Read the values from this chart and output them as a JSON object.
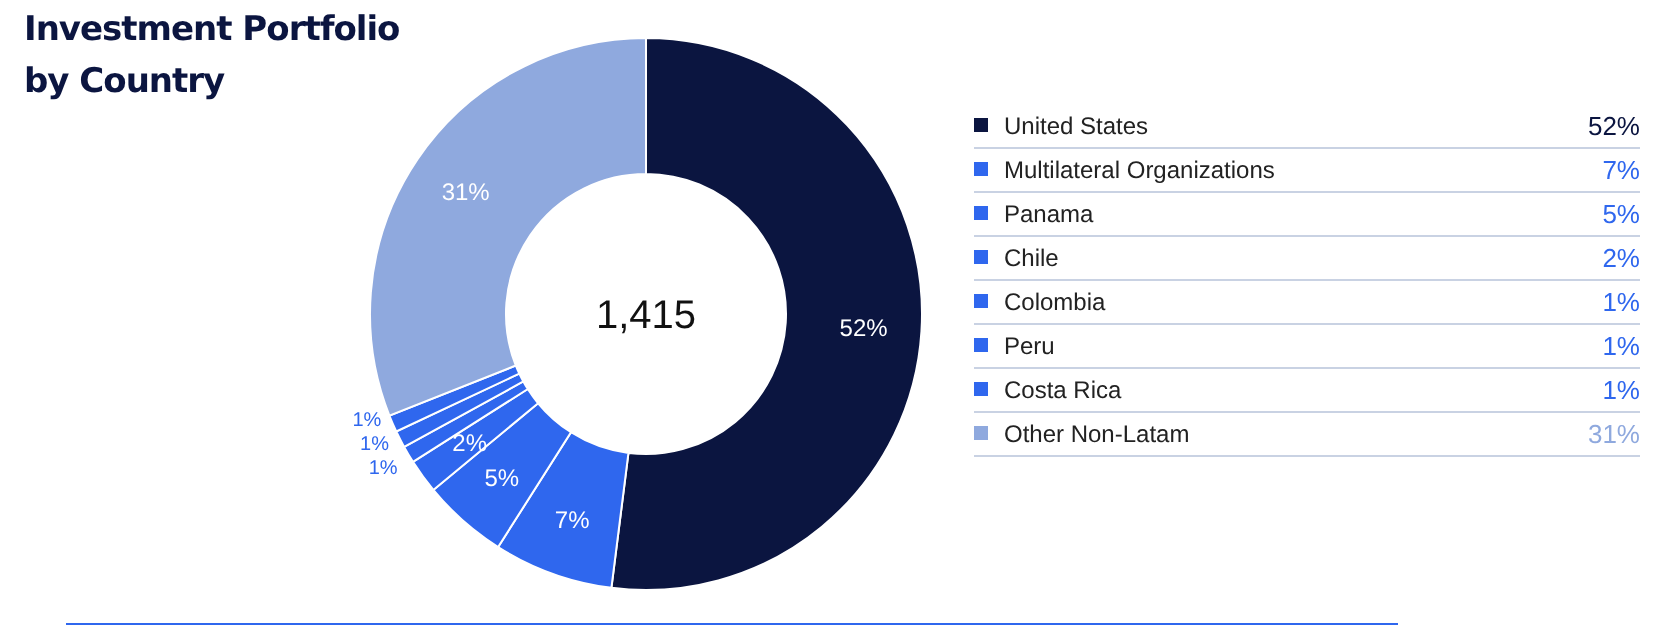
{
  "chart_data": {
    "type": "donut",
    "title": "Investment Portfolio by Country",
    "categories": [
      "United States",
      "Multilateral Organizations",
      "Panama",
      "Chile",
      "Colombia",
      "Peru",
      "Costa Rica",
      "Other Non-Latam"
    ],
    "values": [
      52,
      7,
      5,
      2,
      1,
      1,
      1,
      31
    ],
    "colors": [
      "#0b1540",
      "#2f67ee",
      "#2f67ee",
      "#2f67ee",
      "#2f67ee",
      "#2f67ee",
      "#2f67ee",
      "#8fa9de"
    ],
    "value_labels": [
      "52%",
      "7%",
      "5%",
      "2%",
      "1%",
      "1%",
      "1%",
      "31%"
    ],
    "legend": "right",
    "annotations": [
      "1,415"
    ]
  }
}
